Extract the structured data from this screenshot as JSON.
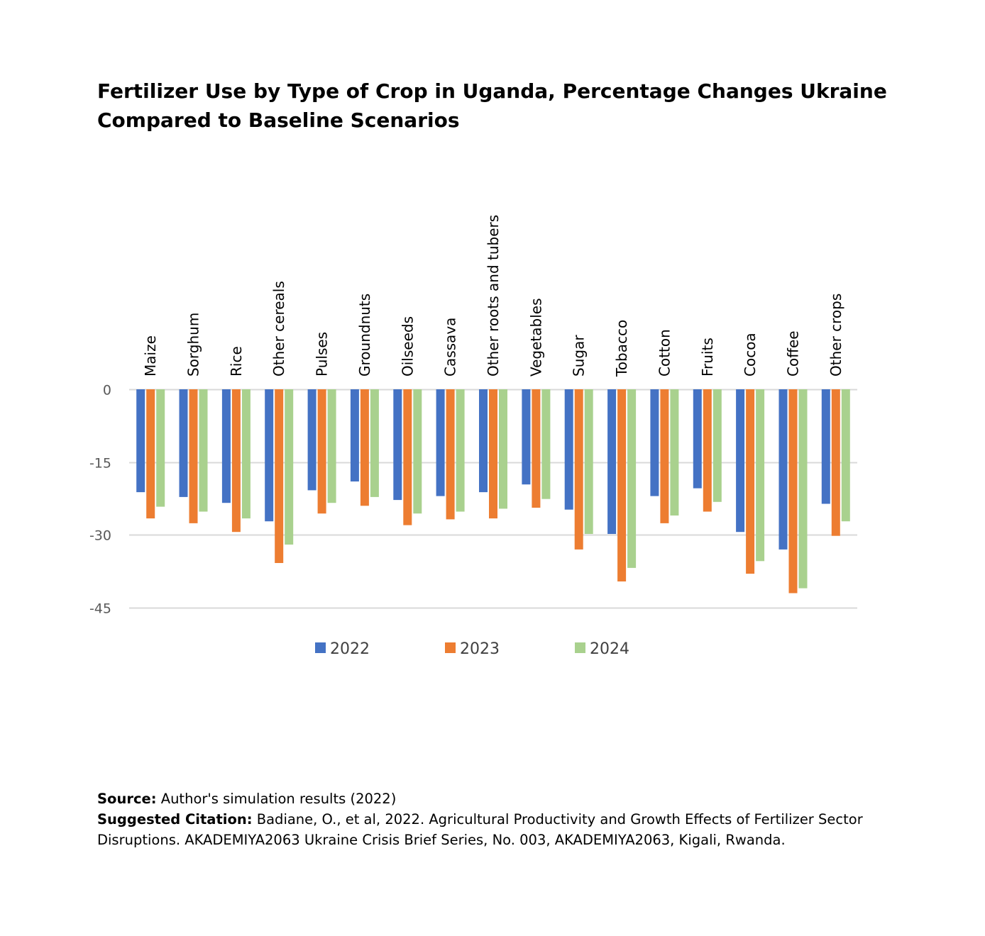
{
  "title_lines": [
    "Fertilizer Use by Type of Crop in Uganda, Percentage Changes Ukraine",
    "Compared to Baseline Scenarios"
  ],
  "chart_data": {
    "type": "bar",
    "categories": [
      "Maize",
      "Sorghum",
      "Rice",
      "Other cereals",
      "Pulses",
      "Groundnuts",
      "Oilseeds",
      "Cassava",
      "Other roots and tubers",
      "Vegetables",
      "Sugar",
      "Tobacco",
      "Cotton",
      "Fruits",
      "Cocoa",
      "Coffee",
      "Other crops"
    ],
    "series": [
      {
        "name": "2022",
        "color": "#4472C4",
        "values": [
          -21.2,
          -22.2,
          -23.4,
          -27.2,
          -20.8,
          -19.0,
          -22.8,
          -22.0,
          -21.2,
          -19.6,
          -24.8,
          -29.8,
          -22.0,
          -20.4,
          -29.4,
          -33.0,
          -23.6
        ]
      },
      {
        "name": "2023",
        "color": "#ED7D31",
        "values": [
          -26.6,
          -27.6,
          -29.4,
          -35.8,
          -25.6,
          -24.0,
          -28.0,
          -26.8,
          -26.6,
          -24.4,
          -33.0,
          -39.6,
          -27.6,
          -25.2,
          -38.0,
          -42.0,
          -30.2
        ]
      },
      {
        "name": "2024",
        "color": "#A9D18E",
        "values": [
          -24.2,
          -25.2,
          -26.6,
          -32.0,
          -23.4,
          -22.2,
          -25.6,
          -25.2,
          -24.6,
          -22.6,
          -29.8,
          -36.8,
          -26.0,
          -23.2,
          -35.4,
          -41.0,
          -27.2
        ]
      }
    ],
    "yticks": [
      0,
      -15,
      -30,
      -45
    ],
    "ylim": [
      -45,
      0
    ],
    "grid": true,
    "legend_position": "bottom"
  },
  "footer": {
    "source_label": "Source:",
    "source_text": "Author's simulation results (2022)",
    "citation_label": "Suggested Citation:",
    "citation_text_1": "Badiane, O., et al, 2022. Agricultural Productivity and Growth Effects of Fertilizer Sector",
    "citation_text_2": "Disruptions. AKADEMIYA2063 Ukraine Crisis Brief Series, No. 003, AKADEMIYA2063, Kigali, Rwanda."
  }
}
